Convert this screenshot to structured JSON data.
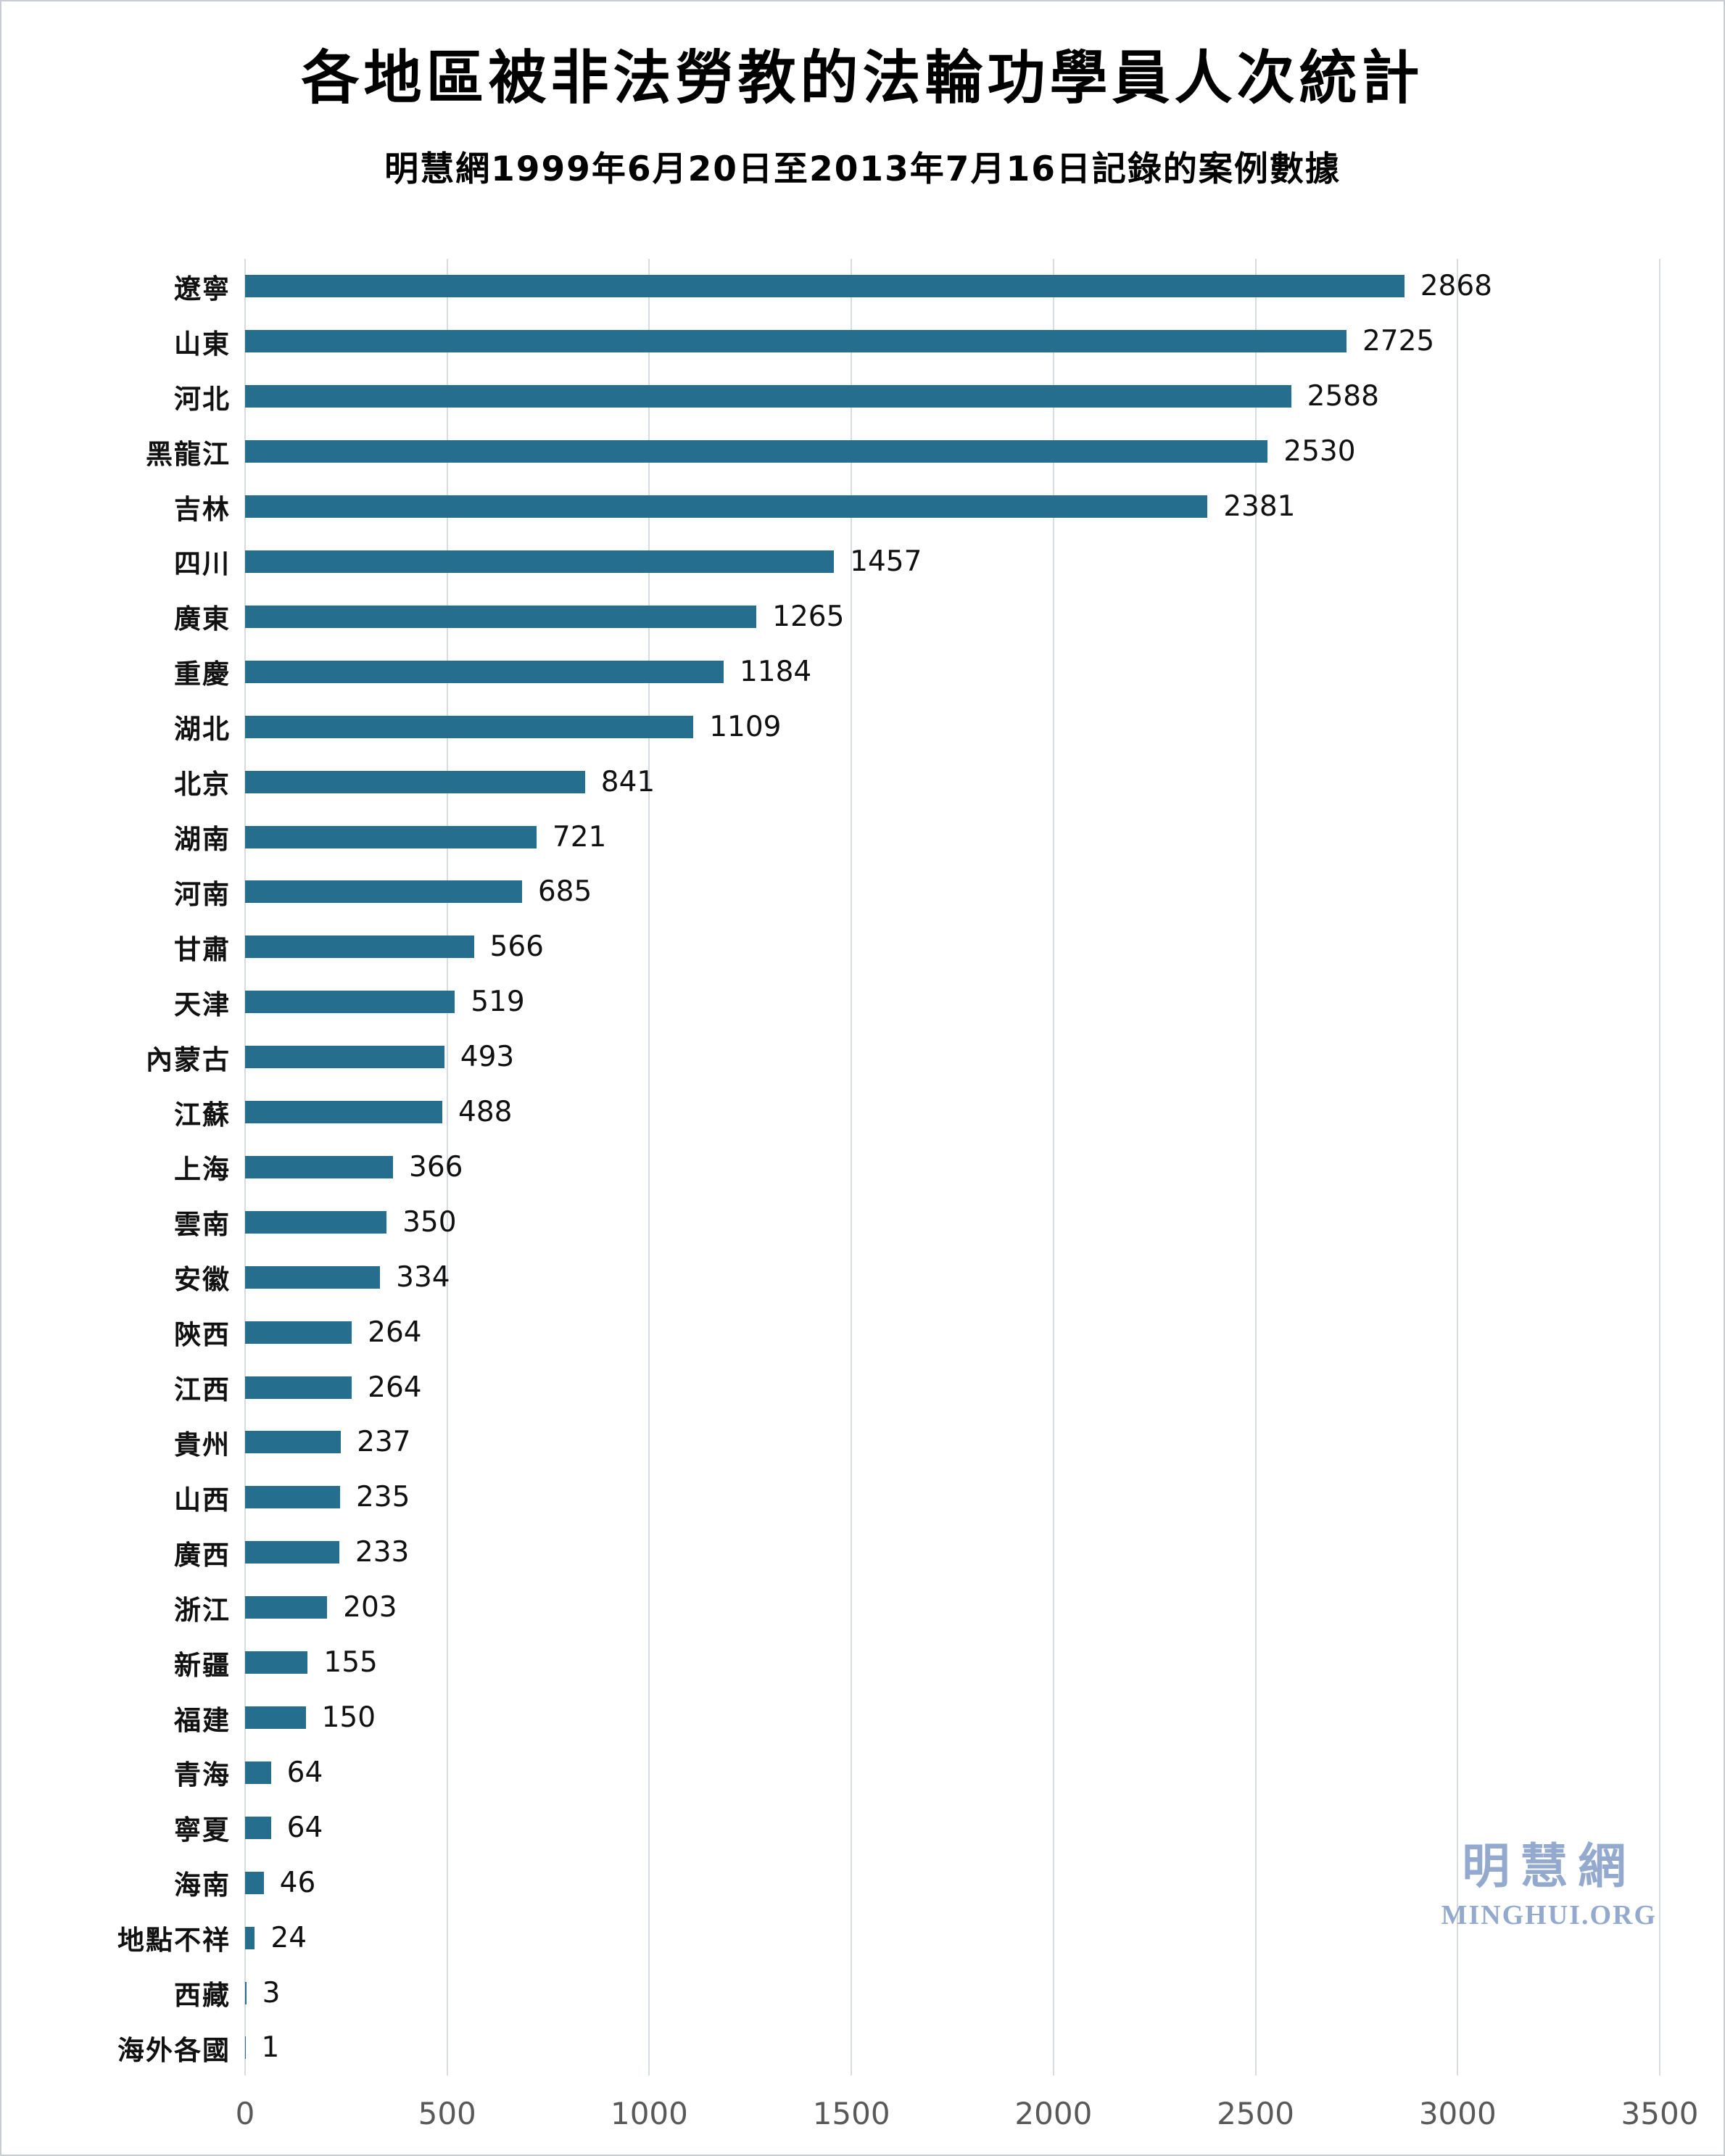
{
  "chart_data": {
    "type": "bar",
    "orientation": "horizontal",
    "title": "各地區被非法勞教的法輪功學員人次統計",
    "subtitle": "明慧網1999年6月20日至2013年7月16日記錄的案例數據",
    "categories": [
      "遼寧",
      "山東",
      "河北",
      "黑龍江",
      "吉林",
      "四川",
      "廣東",
      "重慶",
      "湖北",
      "北京",
      "湖南",
      "河南",
      "甘肅",
      "天津",
      "內蒙古",
      "江蘇",
      "上海",
      "雲南",
      "安徽",
      "陝西",
      "江西",
      "貴州",
      "山西",
      "廣西",
      "浙江",
      "新疆",
      "福建",
      "青海",
      "寧夏",
      "海南",
      "地點不祥",
      "西藏",
      "海外各國"
    ],
    "values": [
      2868,
      2725,
      2588,
      2530,
      2381,
      1457,
      1265,
      1184,
      1109,
      841,
      721,
      685,
      566,
      519,
      493,
      488,
      366,
      350,
      334,
      264,
      264,
      237,
      235,
      233,
      203,
      155,
      150,
      64,
      64,
      46,
      24,
      3,
      1
    ],
    "xlabel": "",
    "ylabel": "",
    "xlim": [
      0,
      3500
    ],
    "xticks": [
      0,
      500,
      1000,
      1500,
      2000,
      2500,
      3000,
      3500
    ],
    "grid": true,
    "legend": false,
    "value_labels": true,
    "bar_color": "#266e8d",
    "grid_color": "#d9dcde",
    "tick_color": "#595959"
  },
  "watermark": {
    "cjk": "明慧網",
    "latin": "MINGHUI.ORG",
    "color": "#93a9ce"
  }
}
